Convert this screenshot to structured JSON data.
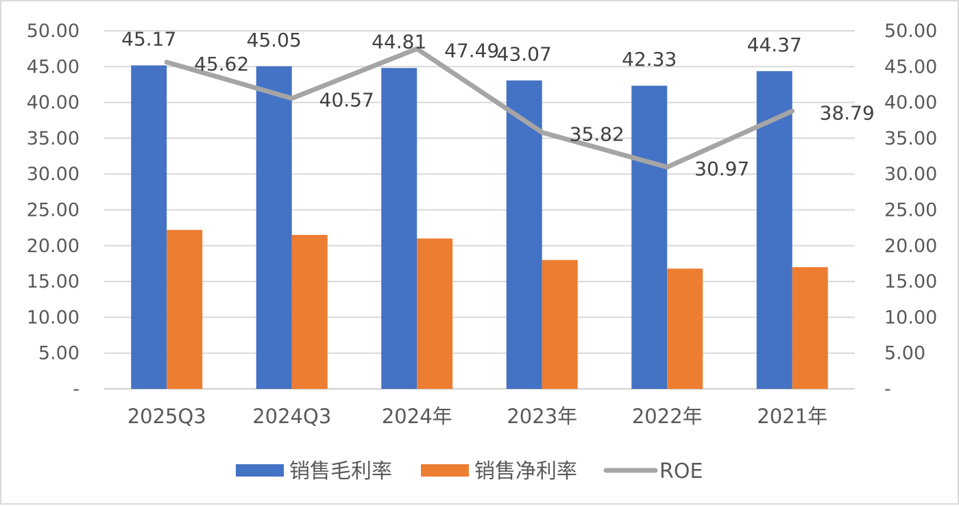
{
  "chart_data": {
    "type": "bar",
    "categories": [
      "2025Q3",
      "2024Q3",
      "2024年",
      "2023年",
      "2022年",
      "2021年"
    ],
    "series": [
      {
        "name": "销售毛利率",
        "type": "bar",
        "axis": "left",
        "color": "#4472C4",
        "values": [
          45.17,
          45.05,
          44.81,
          43.07,
          42.33,
          44.37
        ],
        "labels_shown": true
      },
      {
        "name": "销售净利率",
        "type": "bar",
        "axis": "left",
        "color": "#ED7D31",
        "values": [
          22.2,
          21.5,
          21.0,
          18.0,
          16.8,
          17.0
        ],
        "labels_shown": false
      },
      {
        "name": "ROE",
        "type": "line",
        "axis": "right",
        "color": "#A5A5A5",
        "values": [
          45.62,
          40.57,
          47.49,
          35.82,
          30.97,
          38.79
        ],
        "labels_shown": true
      }
    ],
    "ylim": [
      0,
      50
    ],
    "y2lim": [
      0,
      50
    ],
    "yticks": [
      "-",
      "5.00",
      "10.00",
      "15.00",
      "20.00",
      "25.00",
      "30.00",
      "35.00",
      "40.00",
      "45.00",
      "50.00"
    ],
    "y2ticks": [
      "-",
      "5.00",
      "10.00",
      "15.00",
      "20.00",
      "25.00",
      "30.00",
      "35.00",
      "40.00",
      "45.00",
      "50.00"
    ],
    "grid": true,
    "legend_position": "bottom",
    "title": "",
    "xlabel": "",
    "ylabel": ""
  }
}
